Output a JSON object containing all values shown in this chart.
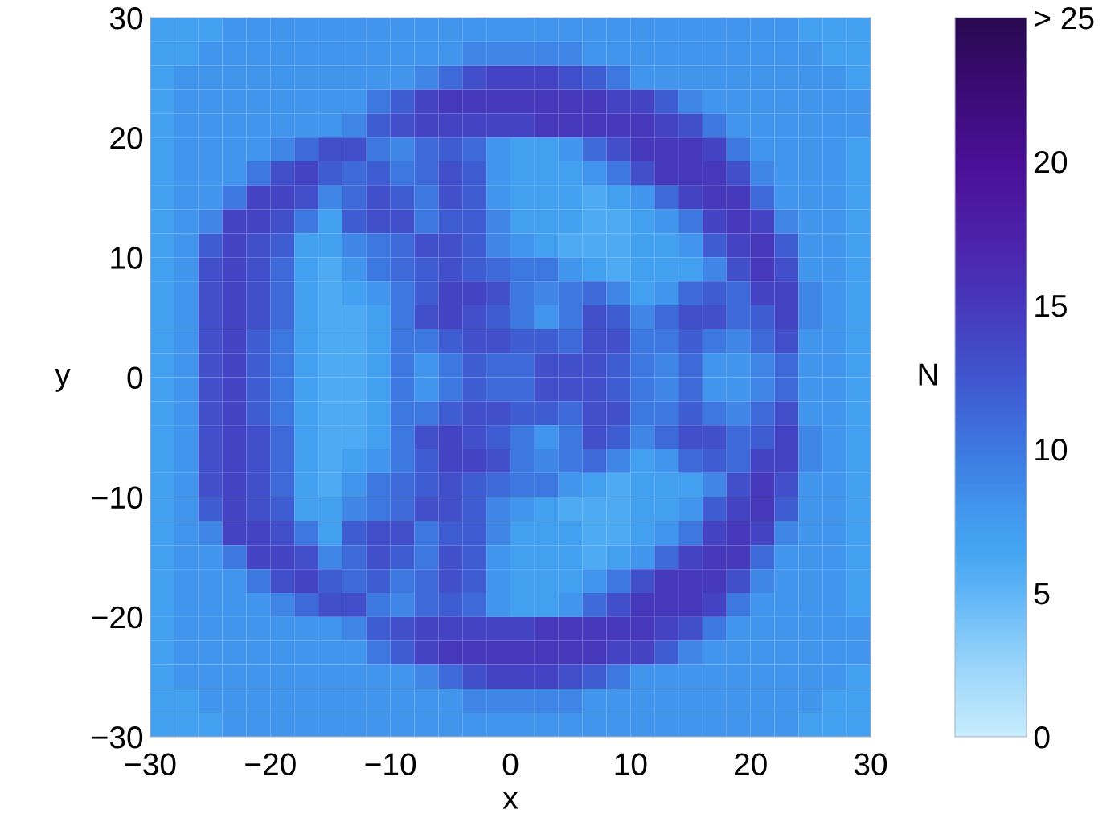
{
  "chart_data": {
    "type": "heatmap",
    "xlabel": "x",
    "ylabel": "y",
    "clabel": "N",
    "xlim": [
      -30,
      30
    ],
    "ylim": [
      -30,
      30
    ],
    "xticks": [
      {
        "value": -30,
        "label": "−30"
      },
      {
        "value": -20,
        "label": "−20"
      },
      {
        "value": -10,
        "label": "−10"
      },
      0,
      10,
      20,
      30
    ],
    "yticks": [
      {
        "value": -30,
        "label": "−30"
      },
      {
        "value": -20,
        "label": "−20"
      },
      {
        "value": -10,
        "label": "−10"
      },
      0,
      10,
      20,
      30
    ],
    "clim": [
      0,
      25
    ],
    "cticks": [
      0,
      5,
      10,
      15,
      20,
      {
        "value": 25,
        "label": "> 25"
      }
    ],
    "cells": [
      [
        7,
        7,
        7,
        8,
        8,
        8,
        8,
        8,
        8,
        8,
        8,
        8,
        8,
        8,
        8,
        8,
        8,
        8,
        8,
        8,
        8,
        8,
        8,
        8,
        8,
        8,
        8,
        7,
        7,
        7
      ],
      [
        7,
        7,
        8,
        8,
        8,
        8,
        8,
        8,
        8,
        8,
        8,
        8,
        8,
        9,
        9,
        9,
        9,
        9,
        8,
        8,
        8,
        8,
        8,
        8,
        8,
        8,
        8,
        8,
        7,
        7
      ],
      [
        7,
        8,
        8,
        8,
        8,
        8,
        8,
        8,
        8,
        8,
        8,
        9,
        11,
        13,
        14,
        14,
        14,
        13,
        12,
        10,
        8,
        8,
        8,
        8,
        8,
        8,
        8,
        8,
        8,
        7
      ],
      [
        7,
        8,
        8,
        8,
        8,
        8,
        8,
        8,
        8,
        10,
        12,
        14,
        15,
        15,
        15,
        15,
        15,
        15,
        15,
        14,
        14,
        12,
        9,
        8,
        8,
        8,
        8,
        8,
        8,
        8
      ],
      [
        7,
        8,
        8,
        8,
        8,
        8,
        8,
        8,
        9,
        12,
        13,
        14,
        14,
        14,
        14,
        14,
        15,
        15,
        15,
        15,
        15,
        14,
        13,
        10,
        8,
        8,
        8,
        8,
        8,
        8
      ],
      [
        7,
        8,
        8,
        8,
        8,
        9,
        11,
        13,
        13,
        10,
        9,
        11,
        12,
        11,
        8,
        7,
        7,
        8,
        11,
        13,
        15,
        15,
        15,
        14,
        10,
        8,
        8,
        8,
        8,
        7
      ],
      [
        7,
        8,
        8,
        8,
        10,
        13,
        14,
        12,
        11,
        12,
        10,
        11,
        13,
        12,
        8,
        7,
        7,
        7,
        8,
        10,
        13,
        15,
        15,
        15,
        13,
        9,
        8,
        8,
        8,
        7
      ],
      [
        7,
        8,
        8,
        10,
        14,
        14,
        13,
        9,
        11,
        13,
        12,
        10,
        13,
        12,
        8,
        7,
        7,
        7,
        6,
        7,
        8,
        11,
        14,
        15,
        15,
        11,
        8,
        8,
        8,
        7
      ],
      [
        7,
        8,
        9,
        14,
        14,
        13,
        10,
        7,
        12,
        13,
        13,
        10,
        12,
        12,
        9,
        7,
        7,
        7,
        6,
        6,
        7,
        8,
        10,
        14,
        15,
        14,
        9,
        8,
        8,
        7
      ],
      [
        7,
        8,
        12,
        14,
        13,
        12,
        7,
        7,
        9,
        10,
        11,
        13,
        13,
        12,
        9,
        8,
        7,
        6,
        6,
        6,
        7,
        7,
        8,
        12,
        14,
        15,
        12,
        8,
        8,
        7
      ],
      [
        7,
        8,
        13,
        14,
        13,
        11,
        7,
        6,
        8,
        10,
        11,
        12,
        13,
        12,
        11,
        10,
        10,
        8,
        7,
        6,
        7,
        7,
        7,
        9,
        13,
        15,
        13,
        8,
        8,
        7
      ],
      [
        7,
        8,
        13,
        14,
        13,
        11,
        7,
        6,
        7,
        8,
        10,
        12,
        14,
        14,
        13,
        10,
        9,
        10,
        11,
        9,
        7,
        8,
        11,
        12,
        11,
        14,
        14,
        9,
        8,
        7
      ],
      [
        7,
        8,
        13,
        14,
        13,
        11,
        7,
        6,
        6,
        7,
        10,
        13,
        14,
        13,
        12,
        10,
        8,
        10,
        13,
        12,
        9,
        11,
        13,
        13,
        11,
        12,
        14,
        9,
        8,
        7
      ],
      [
        7,
        8,
        13,
        14,
        12,
        10,
        7,
        6,
        6,
        7,
        10,
        10,
        12,
        13,
        13,
        12,
        12,
        11,
        13,
        13,
        10,
        10,
        12,
        10,
        9,
        11,
        13,
        8,
        8,
        7
      ],
      [
        7,
        8,
        13,
        14,
        12,
        10,
        7,
        6,
        6,
        7,
        10,
        8,
        10,
        12,
        11,
        11,
        13,
        13,
        13,
        12,
        10,
        9,
        11,
        8,
        8,
        9,
        11,
        8,
        8,
        7
      ],
      [
        7,
        8,
        13,
        14,
        12,
        10,
        7,
        6,
        6,
        7,
        10,
        8,
        10,
        12,
        11,
        11,
        13,
        13,
        13,
        12,
        10,
        9,
        11,
        8,
        8,
        9,
        11,
        8,
        8,
        7
      ],
      [
        7,
        8,
        13,
        14,
        12,
        10,
        7,
        6,
        6,
        7,
        10,
        10,
        12,
        13,
        13,
        12,
        12,
        11,
        13,
        13,
        10,
        10,
        12,
        10,
        9,
        11,
        13,
        8,
        8,
        7
      ],
      [
        7,
        8,
        13,
        14,
        13,
        11,
        7,
        6,
        6,
        7,
        10,
        13,
        14,
        13,
        12,
        10,
        8,
        10,
        13,
        12,
        9,
        11,
        13,
        13,
        11,
        12,
        14,
        9,
        8,
        7
      ],
      [
        7,
        8,
        13,
        14,
        13,
        11,
        7,
        6,
        7,
        8,
        10,
        12,
        14,
        14,
        13,
        10,
        9,
        10,
        11,
        9,
        7,
        8,
        11,
        12,
        11,
        14,
        14,
        9,
        8,
        7
      ],
      [
        7,
        8,
        13,
        14,
        13,
        11,
        7,
        6,
        8,
        10,
        11,
        12,
        13,
        12,
        11,
        10,
        10,
        8,
        7,
        6,
        7,
        7,
        7,
        9,
        13,
        15,
        13,
        8,
        8,
        7
      ],
      [
        7,
        8,
        12,
        14,
        13,
        12,
        7,
        7,
        9,
        10,
        11,
        13,
        13,
        12,
        9,
        8,
        7,
        6,
        6,
        6,
        7,
        7,
        8,
        12,
        14,
        15,
        12,
        8,
        8,
        7
      ],
      [
        7,
        8,
        9,
        14,
        14,
        13,
        10,
        7,
        12,
        13,
        13,
        10,
        12,
        12,
        9,
        7,
        7,
        7,
        6,
        6,
        7,
        8,
        10,
        14,
        15,
        14,
        9,
        8,
        8,
        7
      ],
      [
        7,
        8,
        8,
        10,
        14,
        14,
        13,
        9,
        11,
        13,
        12,
        10,
        13,
        12,
        8,
        7,
        7,
        7,
        6,
        7,
        8,
        11,
        14,
        15,
        15,
        11,
        8,
        8,
        8,
        7
      ],
      [
        7,
        8,
        8,
        8,
        10,
        13,
        14,
        12,
        11,
        12,
        10,
        11,
        13,
        12,
        8,
        7,
        7,
        7,
        8,
        10,
        13,
        15,
        15,
        15,
        13,
        9,
        8,
        8,
        8,
        7
      ],
      [
        7,
        8,
        8,
        8,
        8,
        9,
        11,
        13,
        13,
        10,
        9,
        11,
        12,
        11,
        8,
        7,
        7,
        8,
        11,
        13,
        15,
        15,
        15,
        14,
        10,
        8,
        8,
        8,
        8,
        7
      ],
      [
        7,
        8,
        8,
        8,
        8,
        8,
        8,
        8,
        9,
        12,
        13,
        14,
        14,
        14,
        14,
        14,
        15,
        15,
        15,
        15,
        15,
        14,
        13,
        10,
        8,
        8,
        8,
        8,
        8,
        8
      ],
      [
        7,
        8,
        8,
        8,
        8,
        8,
        8,
        8,
        8,
        10,
        12,
        14,
        15,
        15,
        15,
        15,
        15,
        15,
        15,
        14,
        14,
        12,
        9,
        8,
        8,
        8,
        8,
        8,
        8,
        8
      ],
      [
        7,
        8,
        8,
        8,
        8,
        8,
        8,
        8,
        8,
        8,
        8,
        9,
        11,
        13,
        14,
        14,
        14,
        13,
        12,
        10,
        8,
        8,
        8,
        8,
        8,
        8,
        8,
        8,
        8,
        7
      ],
      [
        7,
        7,
        8,
        8,
        8,
        8,
        8,
        8,
        8,
        8,
        8,
        8,
        8,
        9,
        9,
        9,
        9,
        9,
        8,
        8,
        8,
        8,
        8,
        8,
        8,
        8,
        8,
        8,
        7,
        7
      ],
      [
        7,
        7,
        7,
        8,
        8,
        8,
        8,
        8,
        8,
        8,
        8,
        8,
        8,
        8,
        8,
        8,
        8,
        8,
        8,
        8,
        8,
        8,
        8,
        8,
        8,
        8,
        8,
        7,
        7,
        7
      ]
    ]
  }
}
